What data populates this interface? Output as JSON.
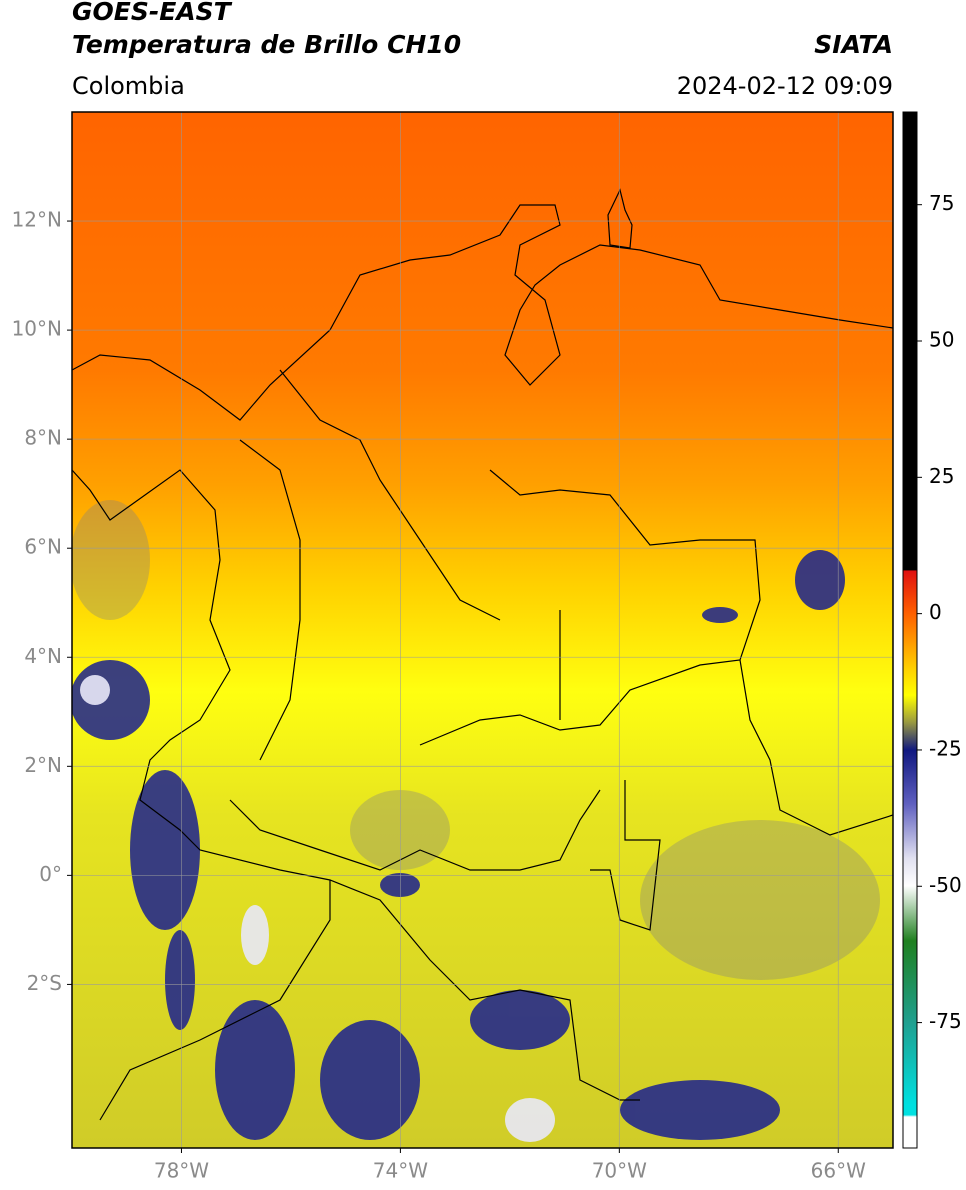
{
  "header": {
    "title": "GOES-EAST",
    "product": "Temperatura de Brillo CH10",
    "region": "Colombia",
    "source": "SIATA",
    "datetime": "2024-02-12 09:09"
  },
  "map": {
    "xlim": [
      -80,
      -65
    ],
    "ylim": [
      -5,
      14
    ],
    "xticks": [
      {
        "value": -78,
        "label": "78°W"
      },
      {
        "value": -74,
        "label": "74°W"
      },
      {
        "value": -70,
        "label": "70°W"
      },
      {
        "value": -66,
        "label": "66°W"
      }
    ],
    "yticks": [
      {
        "value": 12,
        "label": "12°N"
      },
      {
        "value": 10,
        "label": "10°N"
      },
      {
        "value": 8,
        "label": "8°N"
      },
      {
        "value": 6,
        "label": "6°N"
      },
      {
        "value": 4,
        "label": "4°N"
      },
      {
        "value": 2,
        "label": "2°N"
      },
      {
        "value": 0,
        "label": "0°"
      },
      {
        "value": -2,
        "label": "2°S"
      }
    ],
    "grid": true
  },
  "colorbar": {
    "lim": [
      -98,
      92
    ],
    "ticks": [
      75,
      50,
      25,
      0,
      -25,
      -50,
      -75
    ]
  }
}
